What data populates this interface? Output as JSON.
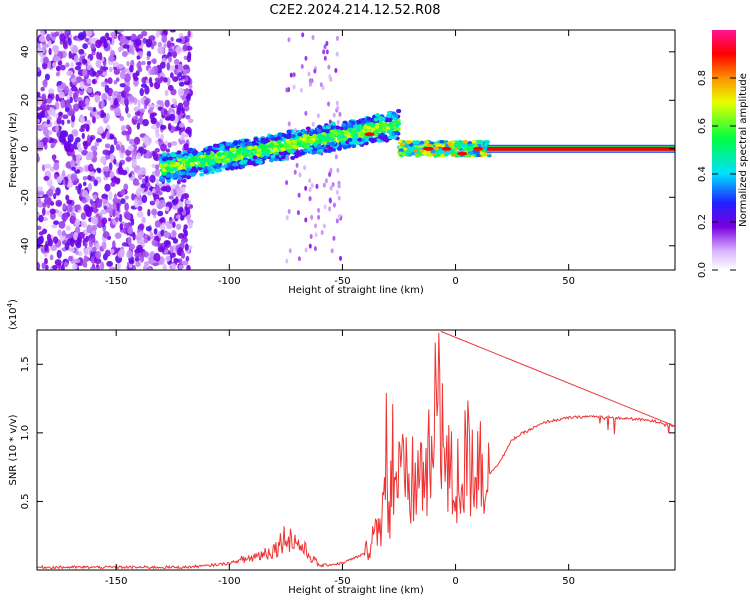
{
  "title": "C2E2.2024.214.12.52.R08",
  "chart_data": [
    {
      "type": "heatmap",
      "name": "spectrogram",
      "xlabel": "Height of straight line (km)",
      "ylabel": "Frequency (Hz)",
      "xlim": [
        -185,
        97
      ],
      "ylim": [
        -50,
        49
      ],
      "xticks": [
        -150,
        -100,
        -50,
        0,
        50
      ],
      "yticks": [
        -40,
        -20,
        0,
        20,
        40
      ],
      "colorbar": {
        "label": "Normalized spectral amplitude",
        "range": [
          0.0,
          1.0
        ],
        "ticks": [
          0.0,
          0.2,
          0.4,
          0.6,
          0.8
        ]
      },
      "features": [
        {
          "description_range_km": [
            -185,
            -120
          ],
          "frequency_range_hz": [
            -50,
            49
          ],
          "amplitude": "0.05-0.2 scattered noise"
        },
        {
          "description_range_km": [
            -130,
            -25
          ],
          "frequency_trend_hz": [
            -8,
            10
          ],
          "amplitude": "0.3-0.9 rising band"
        },
        {
          "description_range_km": [
            -25,
            15
          ],
          "frequency_hz": 0,
          "amplitude": "0.4-1.0 band"
        },
        {
          "description_range_km": [
            15,
            97
          ],
          "frequency_hz": 0,
          "amplitude": "1.0 steady line"
        }
      ]
    },
    {
      "type": "line",
      "name": "snr",
      "xlabel": "Height of straight line (km)",
      "ylabel": "SNR (10 * v/v)",
      "y_multiplier": "(x10^4)",
      "y_multiplier_base": "(x10",
      "y_multiplier_exp": "4",
      "y_multiplier_close": ")",
      "xlim": [
        -185,
        97
      ],
      "ylim": [
        0,
        1.75
      ],
      "xticks": [
        -150,
        -100,
        -50,
        0,
        50
      ],
      "yticks": [
        0.5,
        1.0,
        1.5
      ],
      "line_color": "#ee3333",
      "series": [
        {
          "name": "SNR",
          "x": [
            -185,
            -150,
            -120,
            -110,
            -100,
            -90,
            -80,
            -75,
            -70,
            -60,
            -50,
            -40,
            -35,
            -30,
            -25,
            -20,
            -15,
            -10,
            -7,
            -5,
            0,
            5,
            10,
            15,
            20,
            25,
            30,
            40,
            50,
            60,
            70,
            80,
            90,
            97
          ],
          "y": [
            0.02,
            0.02,
            0.02,
            0.03,
            0.05,
            0.09,
            0.15,
            0.25,
            0.2,
            0.03,
            0.05,
            0.12,
            0.3,
            0.5,
            0.65,
            0.6,
            0.7,
            0.75,
            1.7,
            0.75,
            0.6,
            0.8,
            0.85,
            0.7,
            0.8,
            0.95,
            1.0,
            1.08,
            1.11,
            1.12,
            1.11,
            1.1,
            1.08,
            1.05
          ]
        }
      ]
    }
  ]
}
